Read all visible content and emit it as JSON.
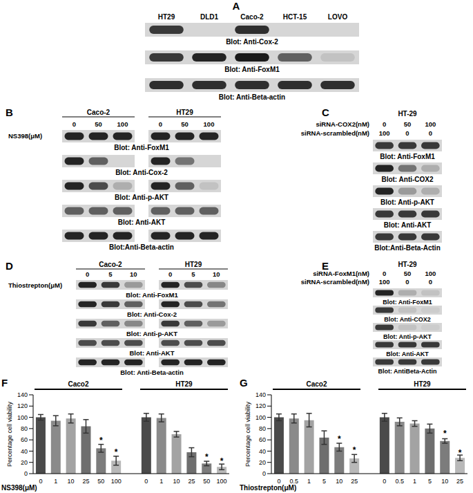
{
  "panels": [
    {
      "label": "A",
      "lanes": [
        "HT29",
        "DLD1",
        "Caco-2",
        "HCT-15",
        "LOVO"
      ],
      "blots": [
        {
          "name": "Blot: Anti-Cox-2",
          "bands": [
            0.8,
            0,
            0.85,
            0,
            0
          ]
        },
        {
          "name": "Blot: Anti-FoxM1",
          "bands": [
            0.8,
            0.9,
            0.95,
            0.6,
            0.1
          ]
        },
        {
          "name": "Blot: Anti-Beta-actin",
          "bands": [
            0.85,
            0.85,
            0.85,
            0.85,
            0.85
          ]
        }
      ]
    },
    {
      "label": "B",
      "treatment": "NS398(μM)",
      "groups": [
        {
          "name": "Caco-2",
          "lanes": [
            "0",
            "50",
            "100"
          ]
        },
        {
          "name": "HT29",
          "lanes": [
            "0",
            "50",
            "100"
          ]
        }
      ],
      "blots": [
        {
          "name": "Blot: Anti-FoxM1",
          "bands": [
            0.9,
            0.9,
            0.9,
            0.9,
            0.9,
            0.9
          ]
        },
        {
          "name": "Blot: Anti-Cox-2",
          "bands": [
            0.9,
            0.6,
            0,
            0.9,
            0.5,
            0
          ]
        },
        {
          "name": "Blot: Anti-p-AKT",
          "bands": [
            0.9,
            0.7,
            0.2,
            0.9,
            0.6,
            0.1
          ]
        },
        {
          "name": "Blot: Anti-AKT",
          "bands": [
            0.6,
            0.6,
            0.6,
            0.6,
            0.6,
            0.6
          ]
        },
        {
          "name": "Blot:Anti-Beta-actin",
          "bands": [
            0.9,
            0.9,
            0.9,
            0.9,
            0.9,
            0.9
          ]
        }
      ]
    },
    {
      "label": "C",
      "group": "HT-29",
      "conditions": [
        {
          "name": "siRNA-COX2(nM)",
          "lanes": [
            "0",
            "50",
            "100"
          ]
        },
        {
          "name": "siRNA-scrambled(nM)",
          "lanes": [
            "100",
            "0",
            "0"
          ]
        }
      ],
      "blots": [
        {
          "name": "Blot: Anti-FoxM1",
          "bands": [
            0.8,
            0.8,
            0.8
          ]
        },
        {
          "name": "Blot: Anti-COX2",
          "bands": [
            0.9,
            0.5,
            0.2
          ]
        },
        {
          "name": "Blot: Anti-p-AKT",
          "bands": [
            0.9,
            0.3,
            0.2
          ]
        },
        {
          "name": "Blot: Anti-AKT",
          "bands": [
            0.8,
            0.8,
            0.8
          ]
        },
        {
          "name": "Blot:Anti-Beta-Actin",
          "bands": [
            0.8,
            0.8,
            0.8
          ]
        }
      ]
    },
    {
      "label": "D",
      "treatment": "Thiostrepton(μM)",
      "groups": [
        {
          "name": "Caco-2",
          "lanes": [
            "0",
            "5",
            "10"
          ]
        },
        {
          "name": "HT29",
          "lanes": [
            "0",
            "5",
            "10"
          ]
        }
      ],
      "blots": [
        {
          "name": "Blot: Anti-FoxM1",
          "bands": [
            0.9,
            0.8,
            0.3,
            0.9,
            0.7,
            0.4
          ]
        },
        {
          "name": "Blot: Anti-Cox-2",
          "bands": [
            0.9,
            0.8,
            0.6,
            0.9,
            0.7,
            0.5
          ]
        },
        {
          "name": "Blot: Anti-p-AKT",
          "bands": [
            0.8,
            0.6,
            0.4,
            0.8,
            0.6,
            0.3
          ]
        },
        {
          "name": "Blot: Anti-AKT",
          "bands": [
            0.7,
            0.7,
            0.7,
            0.7,
            0.7,
            0.7
          ]
        },
        {
          "name": "Blot: Anti-Beta-actin",
          "bands": [
            0.9,
            0.9,
            0.9,
            0.9,
            0.9,
            0.9
          ]
        }
      ]
    },
    {
      "label": "E",
      "group": "HT-29",
      "conditions": [
        {
          "name": "siRNA-FoxM1(nM)",
          "lanes": [
            "0",
            "50",
            "100"
          ]
        },
        {
          "name": "siRNA-scrambled(nM)",
          "lanes": [
            "100",
            "0",
            "0"
          ]
        }
      ],
      "blots": [
        {
          "name": "Blot: Anti-FoxM1",
          "bands": [
            0.9,
            0.2,
            0.1
          ]
        },
        {
          "name": "Blot: Anti-COX2",
          "bands": [
            0.8,
            0.1,
            0.05
          ]
        },
        {
          "name": "Blot: Anti-p-AKT",
          "bands": [
            0.8,
            0.1,
            0.05
          ]
        },
        {
          "name": "Blot: Anti-AKT",
          "bands": [
            0.8,
            0.8,
            0.8
          ]
        },
        {
          "name": "Blot: AntiBeta-Actin",
          "bands": [
            0.8,
            0.8,
            0.8
          ]
        }
      ]
    }
  ],
  "chart_data": [
    {
      "type": "bar",
      "title": "F",
      "x_label": "NS398(μM)",
      "y_label": "Percentage cell viability",
      "categories": [
        "0",
        "1",
        "10",
        "25",
        "50",
        "100"
      ],
      "ylim": [
        0,
        140
      ],
      "yticks": [
        0,
        20,
        40,
        60,
        80,
        100,
        120,
        140
      ],
      "series": [
        {
          "name": "Caco2",
          "values": [
            100,
            94,
            98,
            84,
            45,
            23
          ],
          "errors": [
            5,
            9,
            8,
            12,
            7,
            8
          ],
          "colors": [
            "#4a4a4a",
            "#8a8a8a",
            "#a3a3a3",
            "#6e6e6e",
            "#7c7c7c",
            "#b8b8b8"
          ]
        },
        {
          "name": "HT29",
          "values": [
            100,
            99,
            70,
            38,
            18,
            12
          ],
          "errors": [
            7,
            7,
            5,
            8,
            4,
            5
          ],
          "colors": [
            "#4a4a4a",
            "#8a8a8a",
            "#a3a3a3",
            "#6e6e6e",
            "#7c7c7c",
            "#b8b8b8"
          ]
        }
      ],
      "annotations": [
        {
          "text": "*",
          "series": "Caco2",
          "category": "50"
        },
        {
          "text": "*",
          "series": "Caco2",
          "category": "100"
        },
        {
          "text": "*",
          "series": "HT29",
          "category": "50"
        },
        {
          "text": "*",
          "series": "HT29",
          "category": "100"
        }
      ]
    },
    {
      "type": "bar",
      "title": "G",
      "x_label": "Thiostrepton(μM)",
      "y_label": "Percentage cell viability",
      "categories": [
        "0",
        "0.5",
        "1",
        "5",
        "10",
        "25"
      ],
      "ylim": [
        0,
        140
      ],
      "yticks": [
        0,
        20,
        40,
        60,
        80,
        100,
        120,
        140
      ],
      "series": [
        {
          "name": "Caco2",
          "values": [
            100,
            98,
            95,
            64,
            47,
            27
          ],
          "errors": [
            6,
            8,
            12,
            12,
            7,
            7
          ],
          "colors": [
            "#4a4a4a",
            "#8a8a8a",
            "#a3a3a3",
            "#6e6e6e",
            "#7c7c7c",
            "#b8b8b8"
          ]
        },
        {
          "name": "HT29",
          "values": [
            100,
            92,
            89,
            80,
            58,
            28
          ],
          "errors": [
            7,
            7,
            5,
            8,
            4,
            5
          ],
          "colors": [
            "#4a4a4a",
            "#8a8a8a",
            "#a3a3a3",
            "#6e6e6e",
            "#7c7c7c",
            "#b8b8b8"
          ]
        }
      ],
      "annotations": [
        {
          "text": "*",
          "series": "Caco2",
          "category": "10"
        },
        {
          "text": "*",
          "series": "Caco2",
          "category": "25"
        },
        {
          "text": "*",
          "series": "HT29",
          "category": "10"
        },
        {
          "text": "*",
          "series": "HT29",
          "category": "25"
        }
      ]
    }
  ]
}
